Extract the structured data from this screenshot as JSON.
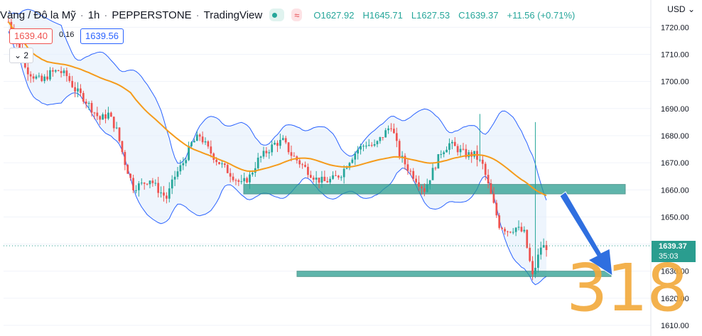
{
  "header": {
    "symbol": "Vàng / Đô la Mỹ",
    "interval": "1h",
    "broker": "PEPPERSTONE",
    "platform": "TradingView",
    "open": "O1627.92",
    "high": "H1645.71",
    "low": "L1627.53",
    "close": "C1639.37",
    "change": "+11.56 (+0.71%)"
  },
  "overlay": {
    "sell_price": "1639.40",
    "spread": "0.16",
    "buy_price": "1639.56",
    "collapse_count": "2"
  },
  "axis": {
    "currency": "USD",
    "currency_icon": "chevron-down-icon"
  },
  "price_tag": {
    "price": "1639.37",
    "countdown": "35:03"
  },
  "watermark": "318",
  "colors": {
    "up": "#26a69a",
    "down": "#ef5350",
    "bollinger": "#2962ff",
    "ma": "#f59b1b",
    "zone": "#2a9d8f",
    "arrow": "#2f6fe0"
  },
  "chart_data": {
    "type": "candlestick",
    "y_axis_ticks": [
      1720,
      1710,
      1700,
      1690,
      1680,
      1670,
      1660,
      1650,
      1640,
      1630,
      1620,
      1610
    ],
    "ylim": [
      1607.5,
      1725
    ],
    "last_price": 1639.37,
    "zones": [
      {
        "from": 1658.5,
        "to": 1662
      },
      {
        "from": 1628,
        "to": 1630
      }
    ],
    "close_path": [
      1722,
      1715,
      1705,
      1702,
      1700,
      1703,
      1704,
      1702,
      1697,
      1694,
      1690,
      1686,
      1688,
      1682,
      1670,
      1661,
      1662,
      1664,
      1660,
      1657,
      1665,
      1670,
      1677,
      1680,
      1675,
      1671,
      1668,
      1665,
      1662,
      1665,
      1671,
      1674,
      1677,
      1678,
      1673,
      1670,
      1667,
      1664,
      1663,
      1664,
      1666,
      1671,
      1675,
      1677,
      1676,
      1680,
      1684,
      1673,
      1668,
      1664,
      1660,
      1667,
      1674,
      1677,
      1675,
      1673,
      1673,
      1669,
      1658,
      1647,
      1645,
      1646,
      1644,
      1628,
      1639
    ]
  }
}
